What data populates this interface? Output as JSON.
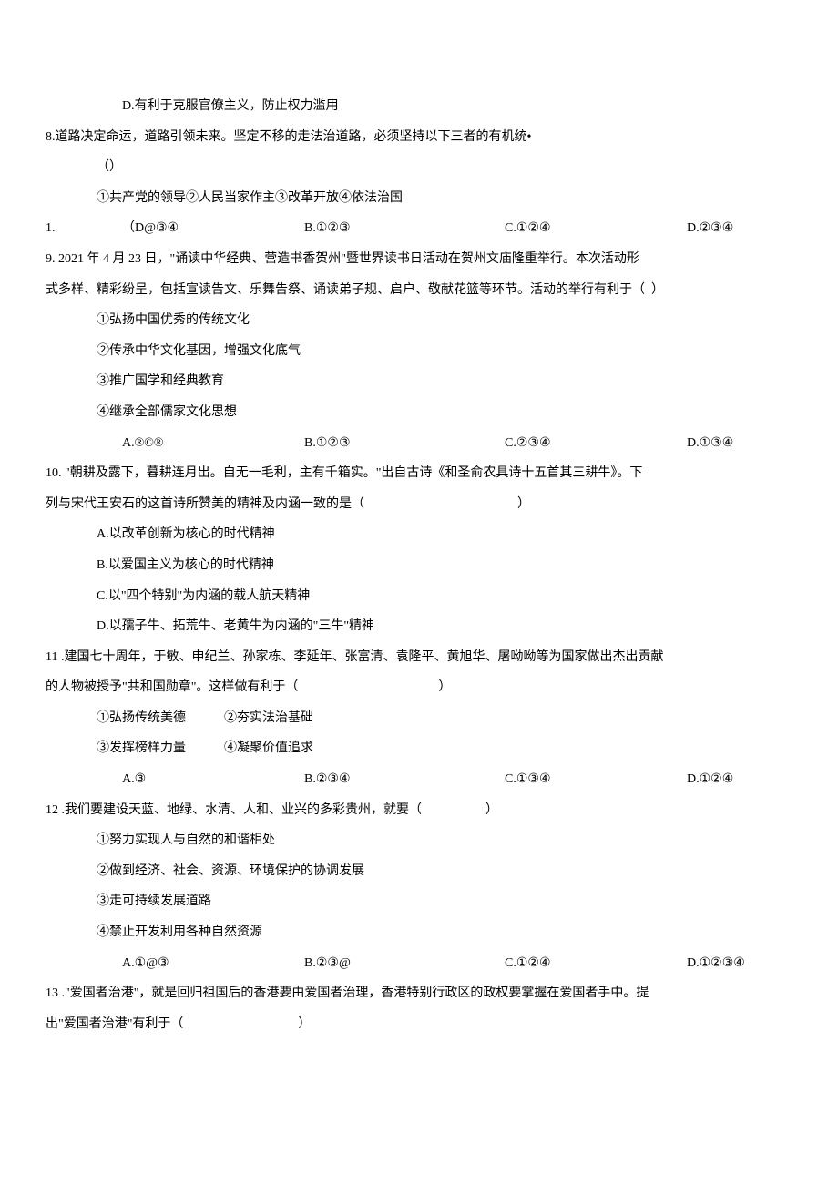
{
  "doc": {
    "font_family": "SimSun",
    "font_size_pt": 10.5,
    "text_color": "#000000",
    "background_color": "#ffffff",
    "line_height": 2.4
  },
  "q7": {
    "optD": "D.有利于克服官僚主义，防止权力滥用"
  },
  "q8": {
    "stem1": "8.道路决定命运，道路引领未来。坚定不移的走法治道路，必须坚持以下三者的有机统•",
    "stem2": "（）",
    "subs": "①共产党的领导②人民当家作主③改革开放④依法治国",
    "lead": "1.",
    "optA": "（D@③④",
    "optB": "B.①②③",
    "optC": "C.①②④",
    "optD": "D.②③④"
  },
  "q9": {
    "stem1": "9. 2021 年 4 月 23 日，\"诵读中华经典、营造书香贺州\"暨世界读书日活动在贺州文庙隆重举行。本次活动形",
    "stem2": "式多样、精彩纷呈，包括宣读告文、乐舞告祭、诵读弟子规、启户、敬献花篮等环节。活动的举行有利于（  ）",
    "sub1": "①弘扬中国优秀的传统文化",
    "sub2": "②传承中华文化基因，增强文化底气",
    "sub3": "③推广国学和经典教育",
    "sub4": "④继承全部儒家文化思想",
    "optA": "A.®©®",
    "optB": "B.①②③",
    "optC": "C.②③④",
    "optD": "D.①③④"
  },
  "q10": {
    "stem1": "10. \"朝耕及露下，暮耕连月出。自无一毛利，主有千箱实。\"出自古诗《和圣俞农具诗十五首其三耕牛》。下",
    "stem2": "列与宋代王安石的这首诗所赞美的精神及内涵一致的是（　　　　　　　　　　　　）",
    "optA": "A.以改革创新为核心的时代精神",
    "optB": "B.以爱国主义为核心的时代精神",
    "optC": "C.以\"四个特别\"为内涵的载人航天精神",
    "optD": "D.以孺子牛、拓荒牛、老黄牛为内涵的\"三牛\"精神"
  },
  "q11": {
    "stem1": "11 .建国七十周年，于敏、申纪兰、孙家栋、李延年、张富清、袁隆平、黄旭华、屠呦呦等为国家做出杰出贡献",
    "stem2": "的人物被授予\"共和国勋章\"。这样做有利于（　　　　　　　　　　　）",
    "sub12": "①弘扬传统美德　　　②夯实法治基础",
    "sub34": "③发挥榜样力量　　　④凝聚价值追求",
    "optA": "A.③",
    "optB": "B.②③④",
    "optC": "C.①③④",
    "optD": "D.①②④"
  },
  "q12": {
    "stem": "12 .我们要建设天蓝、地绿、水清、人和、业兴的多彩贵州，就要（　　　　　）",
    "sub1": "①努力实现人与自然的和谐相处",
    "sub2": "②做到经济、社会、资源、环境保护的协调发展",
    "sub3": "③走可持续发展道路",
    "sub4": "④禁止开发利用各种自然资源",
    "optA": "A.①@③",
    "optB": "B.②③@",
    "optC": "C.①②④",
    "optD": "D.①②③④"
  },
  "q13": {
    "stem1": "13 .\"爱国者治港\"，就是回归祖国后的香港要由爱国者治理，香港特别行政区的政权要掌握在爱国者手中。提",
    "stem2": "出\"爱国者治港\"有利于（　　　　　　　　　）"
  }
}
